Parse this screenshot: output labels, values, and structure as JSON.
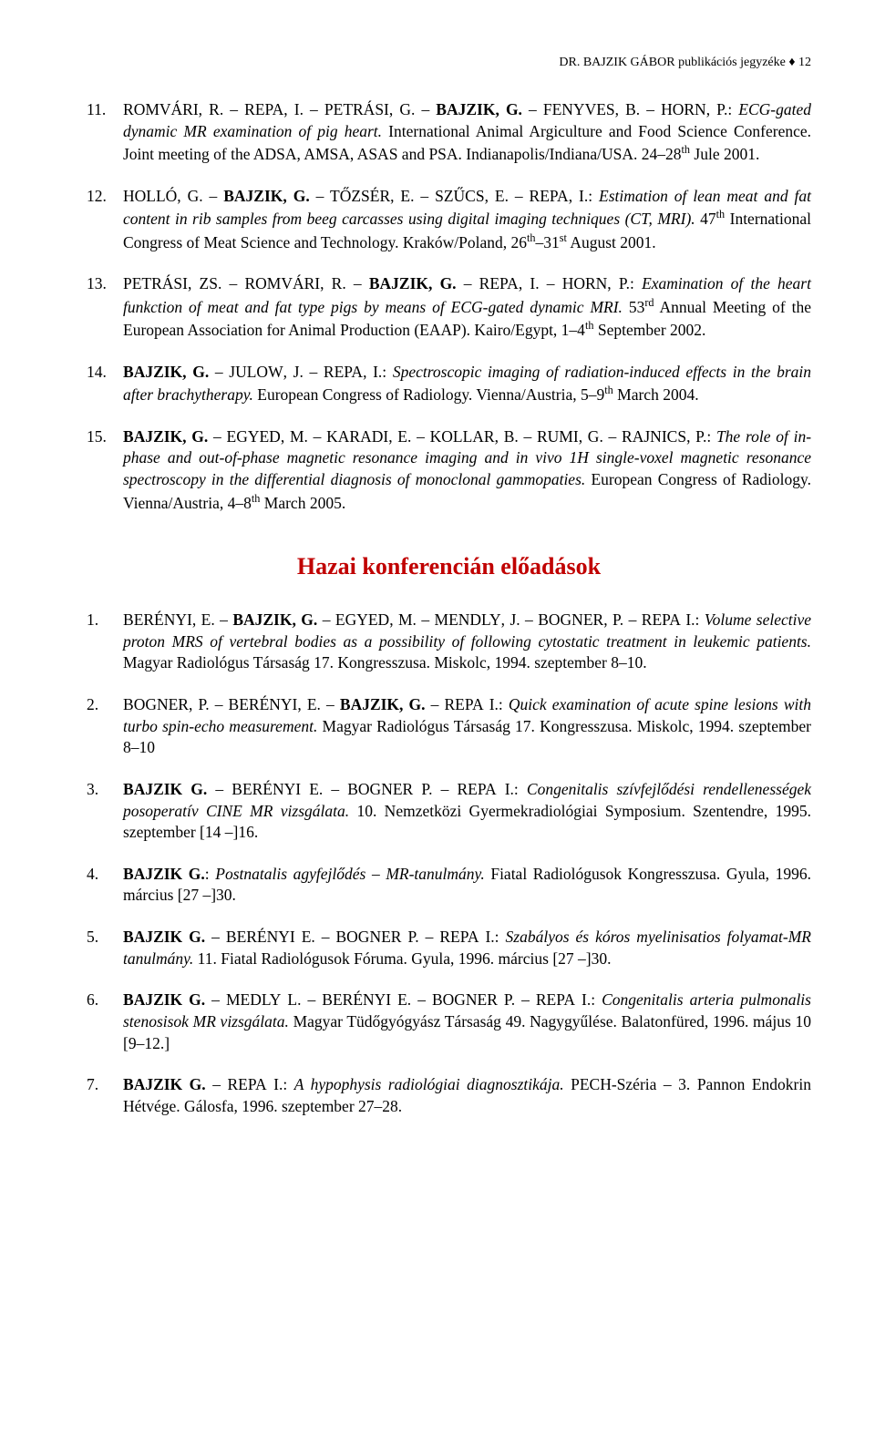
{
  "header": "DR. BAJZIK GÁBOR publikációs jegyzéke ♦ 12",
  "section1": [
    {
      "num": "11.",
      "html": "R<span class='sc'>OMVÁRI</span>, R. – R<span class='sc'>EPA</span>, I. – P<span class='sc'>ETRÁSI</span>, G. – <span class='bold'>B<span class='sc'>AJZIK</span>, G.</span> – F<span class='sc'>ENYVES</span>, B. – H<span class='sc'>ORN</span>, P.: <span class='italic'>ECG-gated dynamic MR examination of pig heart.</span> International Animal Argiculture and Food Science Conference. Joint meeting of the ADSA, AMSA, ASAS and PSA. Indianapolis/Indiana/USA. 24–28<sup>th</sup> Jule 2001."
    },
    {
      "num": "12.",
      "html": "H<span class='sc'>OLLÓ</span>, G. – <span class='bold'>B<span class='sc'>AJZIK</span>, G.</span> – T<span class='sc'>ŐZSÉR</span>, E. – S<span class='sc'>ZŰCS</span>, E. – R<span class='sc'>EPA</span>, I.: <span class='italic'>Estimation of lean meat and fat content in rib samples from beeg carcasses using digital imaging techniques (CT, MRI).</span> 47<sup>th</sup> International Congress of Meat Science and Technology. Kraków/Poland, 26<sup>th</sup>–31<sup>st</sup> August 2001."
    },
    {
      "num": "13.",
      "html": "P<span class='sc'>ETRÁSI</span>, Z<span class='sc'>S</span>. – R<span class='sc'>OMVÁRI</span>, R. – <span class='bold'>B<span class='sc'>AJZIK</span>, G.</span> – R<span class='sc'>EPA</span>, I. – H<span class='sc'>ORN</span>, P.: <span class='italic'>Examination of the heart funkction of meat and fat type pigs by means of ECG-gated dynamic MRI.</span> 53<sup>rd</sup> Annual Meeting of the European Association for Animal Production (EAAP). Kairo/Egypt, 1–4<sup>th</sup> September 2002."
    },
    {
      "num": "14.",
      "html": "<span class='bold'>B<span class='sc'>AJZIK</span>, G.</span> – J<span class='sc'>ULOW</span>, J. – R<span class='sc'>EPA</span>, I.: <span class='italic'>Spectroscopic imaging of radiation-induced effects in the brain after brachytherapy.</span> European Congress of Radiology. Vienna/Austria, 5–9<sup>th</sup> March 2004."
    },
    {
      "num": "15.",
      "html": "<span class='bold'>B<span class='sc'>AJZIK</span>, G.</span> – E<span class='sc'>GYED</span>, M. – K<span class='sc'>ARADI</span>, E. – K<span class='sc'>OLLAR</span>, B. – R<span class='sc'>UMI</span>, G. – R<span class='sc'>AJNICS</span>, P.: <span class='italic'>The role of in-phase and out-of-phase magnetic resonance imaging and in vivo 1H single-voxel magnetic resonance spectroscopy in the differential diagnosis of monoclonal gammopaties.</span> European Congress of Radiology. Vienna/Austria, 4–8<sup>th</sup> March 2005."
    }
  ],
  "section_title": "Hazai konferencián előadások",
  "section2": [
    {
      "num": "1.",
      "html": "B<span class='sc'>ERÉNYI</span>, E. – <span class='bold'>B<span class='sc'>AJZIK</span>, G.</span> – E<span class='sc'>GYED</span>, M. – M<span class='sc'>ENDLY</span>, J. – B<span class='sc'>OGNER</span>, P. – R<span class='sc'>EPA</span> I.: <span class='italic'>Volume selective proton MRS of vertebral bodies as a possibility of following cytostatic treatment in leukemic patients.</span> Magyar Radiológus Társaság 17. Kongresszusa. Miskolc, 1994. szeptember 8–10."
    },
    {
      "num": "2.",
      "html": "B<span class='sc'>OGNER</span>, P. – B<span class='sc'>ERÉNYI</span>, E. – <span class='bold'>B<span class='sc'>AJZIK</span>, G.</span> – R<span class='sc'>EPA</span> I.: <span class='italic'>Quick examination of acute spine lesions with turbo spin-echo measurement.</span> Magyar Radiológus Társaság 17. Kongresszusa. Miskolc, 1994. szeptember 8–10"
    },
    {
      "num": "3.",
      "html": "<span class='bold'>B<span class='sc'>AJZIK</span> G.</span> – B<span class='sc'>ERÉNYI</span> E. – B<span class='sc'>OGNER</span> P. – R<span class='sc'>EPA</span> I.: <span class='italic'>Congenitalis szívfejlődési rendellenességek posoperatív CINE MR vizsgálata.</span> 10. Nemzetközi Gyermekradiológiai Symposium. Szentendre, 1995. szeptember [14 –]16."
    },
    {
      "num": "4.",
      "html": "<span class='bold'>B<span class='sc'>AJZIK</span> G.</span>: <span class='italic'>Postnatalis agyfejlődés – MR-tanulmány.</span> Fiatal Radiológusok Kongresszusa. Gyula, 1996. március [27 –]30."
    },
    {
      "num": "5.",
      "html": "<span class='bold'>B<span class='sc'>AJZIK</span> G.</span> – B<span class='sc'>ERÉNYI</span> E. – B<span class='sc'>OGNER</span> P. – R<span class='sc'>EPA</span> I.: <span class='italic'>Szabályos és kóros myelinisatios folyamat-MR tanulmány.</span> 11. Fiatal Radiológusok Fóruma. Gyula, 1996. március [27 –]30."
    },
    {
      "num": "6.",
      "html": "<span class='bold'>B<span class='sc'>AJZIK</span> G.</span> – M<span class='sc'>EDLY</span> L. – B<span class='sc'>ERÉNYI</span> E. – B<span class='sc'>OGNER</span> P. – R<span class='sc'>EPA</span> I.: <span class='italic'>Congenitalis arteria pulmonalis stenosisok MR vizsgálata.</span> Magyar Tüdőgyógyász Társaság 49. Nagygyűlése. Balatonfüred, 1996. május 10 [9–12.]"
    },
    {
      "num": "7.",
      "html": "<span class='bold'>B<span class='sc'>AJZIK</span> G.</span> – R<span class='sc'>EPA</span> I.: <span class='italic'>A hypophysis radiológiai diagnosztikája.</span> PECH-Széria – 3. Pannon Endokrin Hétvége. Gálosfa, 1996. szeptember 27–28."
    }
  ]
}
